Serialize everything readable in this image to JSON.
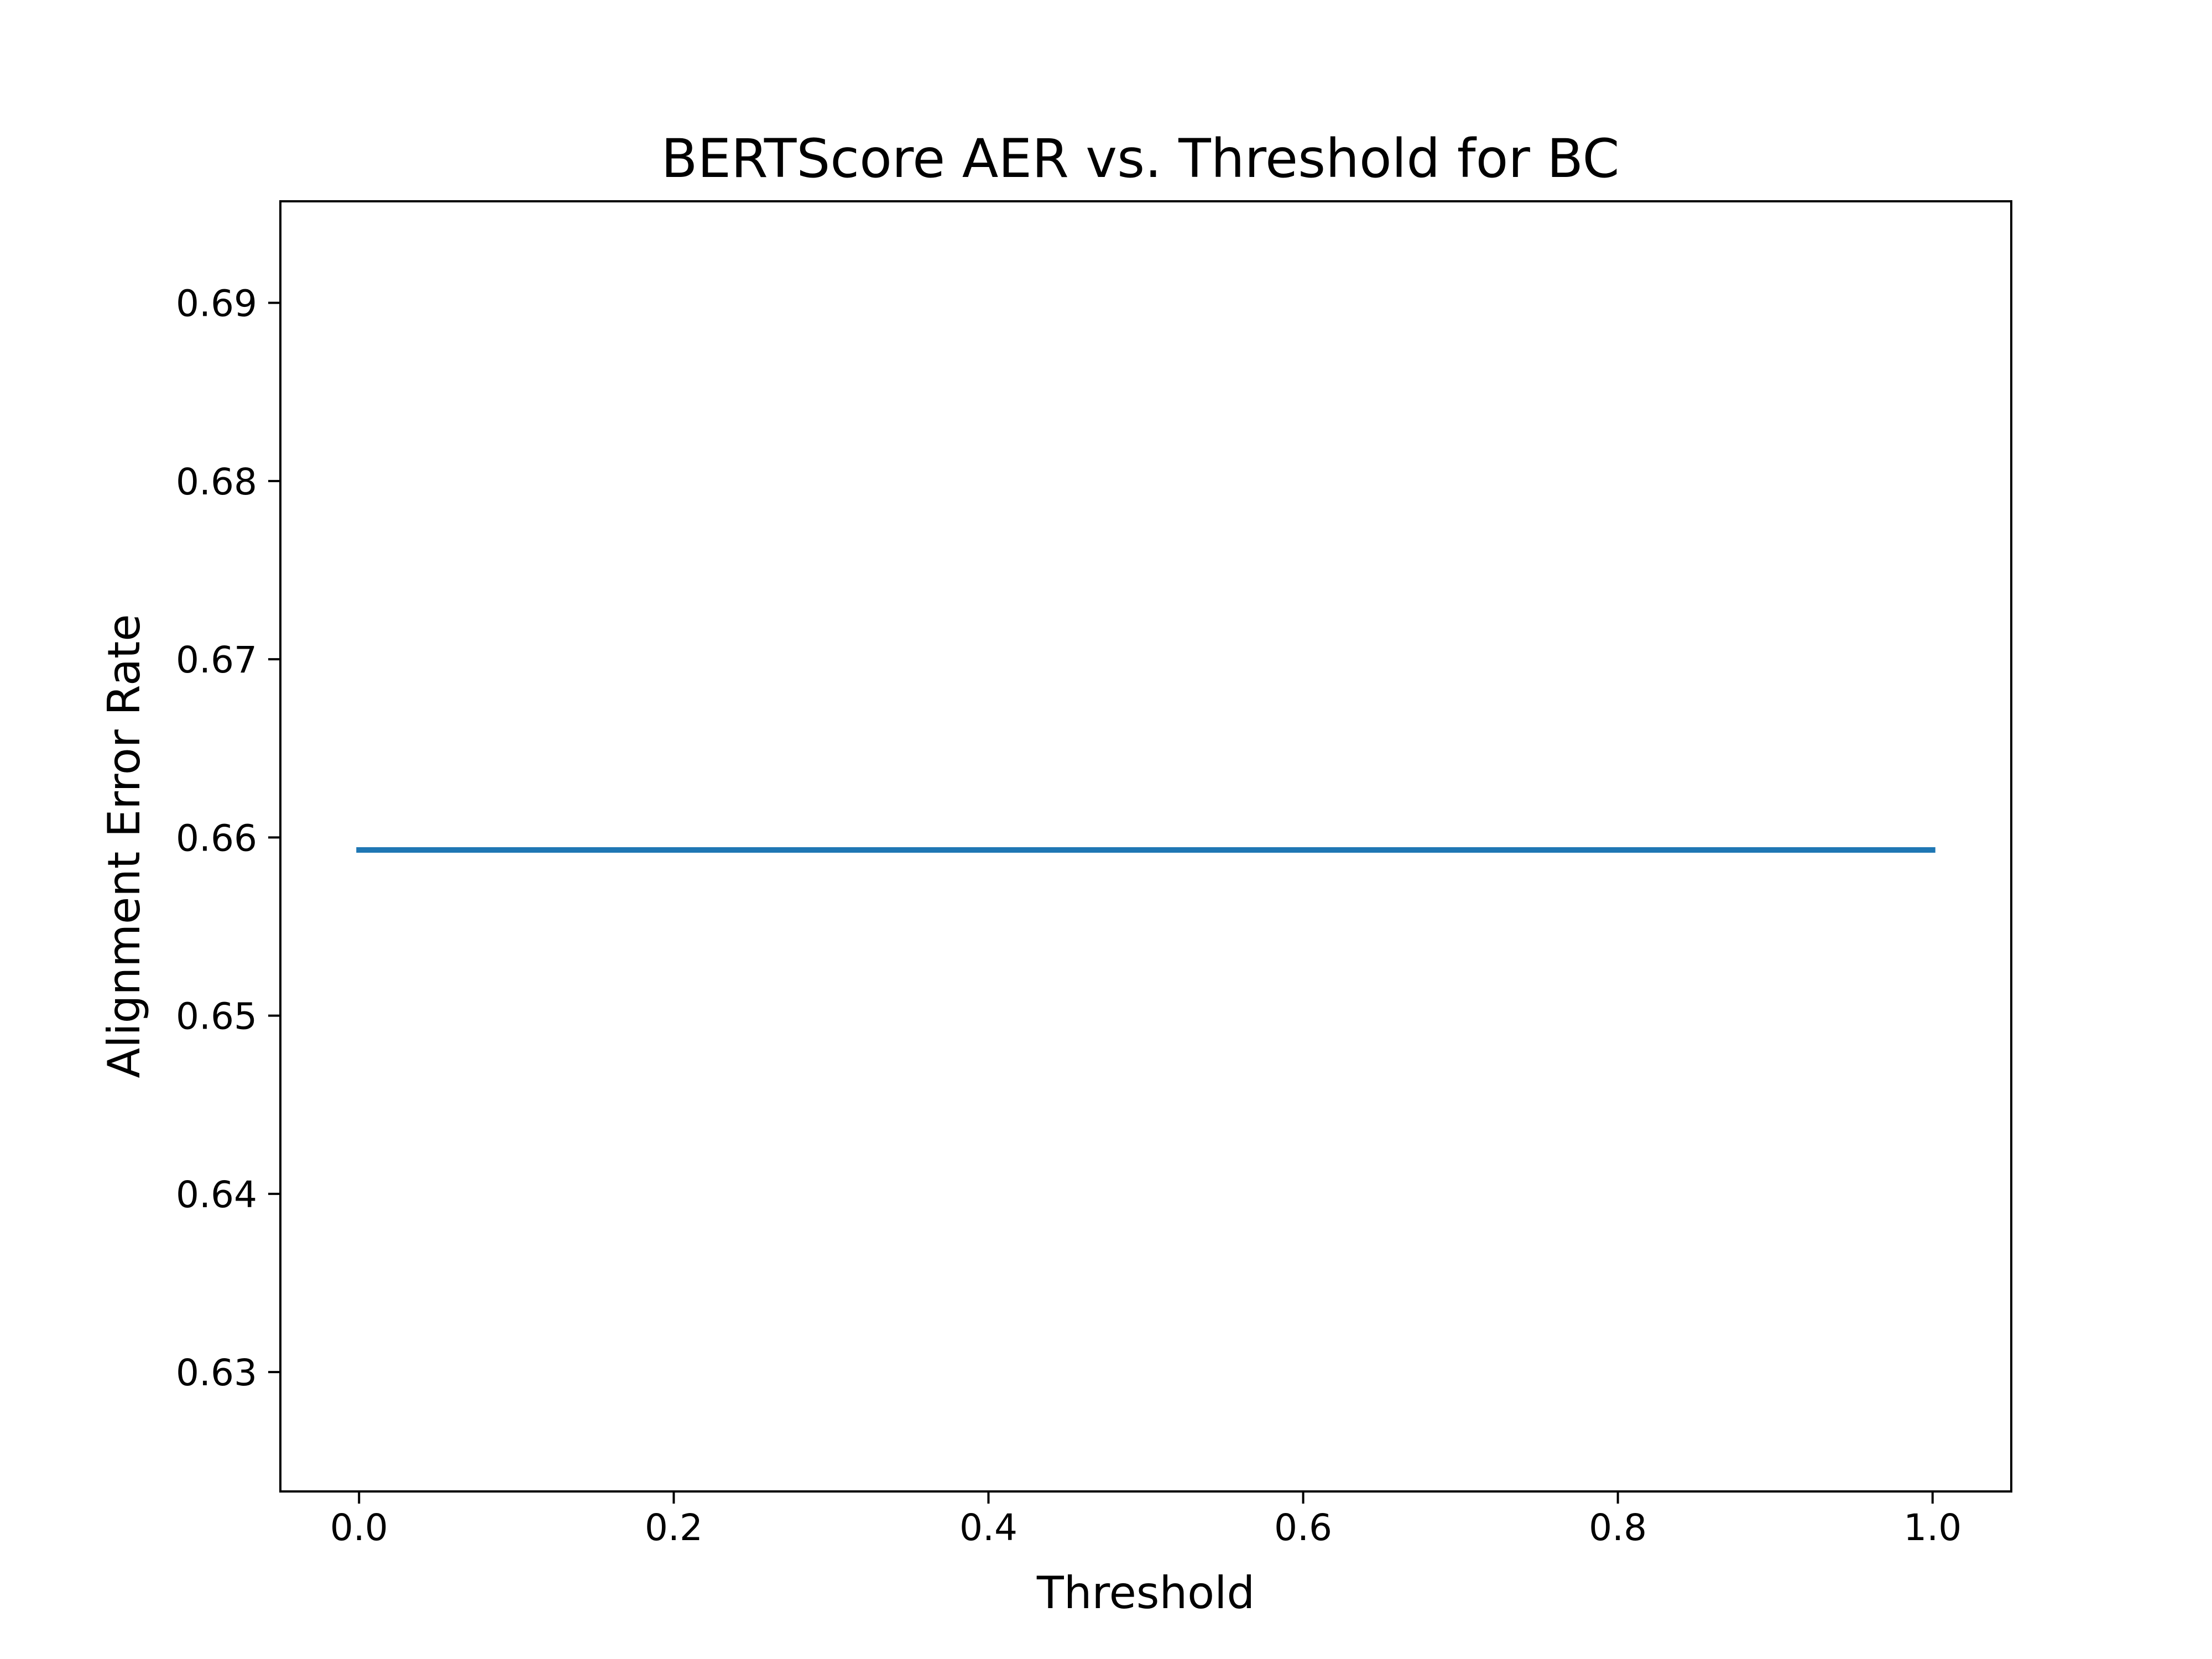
{
  "chart_data": {
    "type": "line",
    "title": "BERTScore AER vs. Threshold for BC",
    "xlabel": "Threshold",
    "ylabel": "Alignment Error Rate",
    "xlim": [
      -0.05,
      1.05
    ],
    "ylim": [
      0.6233,
      0.6957
    ],
    "xticks": [
      0.0,
      0.2,
      0.4,
      0.6,
      0.8,
      1.0
    ],
    "xtick_labels": [
      "0.0",
      "0.2",
      "0.4",
      "0.6",
      "0.8",
      "1.0"
    ],
    "yticks": [
      0.63,
      0.64,
      0.65,
      0.66,
      0.67,
      0.68,
      0.69
    ],
    "ytick_labels": [
      "0.63",
      "0.64",
      "0.65",
      "0.66",
      "0.67",
      "0.68",
      "0.69"
    ],
    "grid": false,
    "series": [
      {
        "color": "#1f77b4",
        "x": [
          0.0,
          1.0
        ],
        "y": [
          0.6593,
          0.6593
        ]
      }
    ]
  }
}
